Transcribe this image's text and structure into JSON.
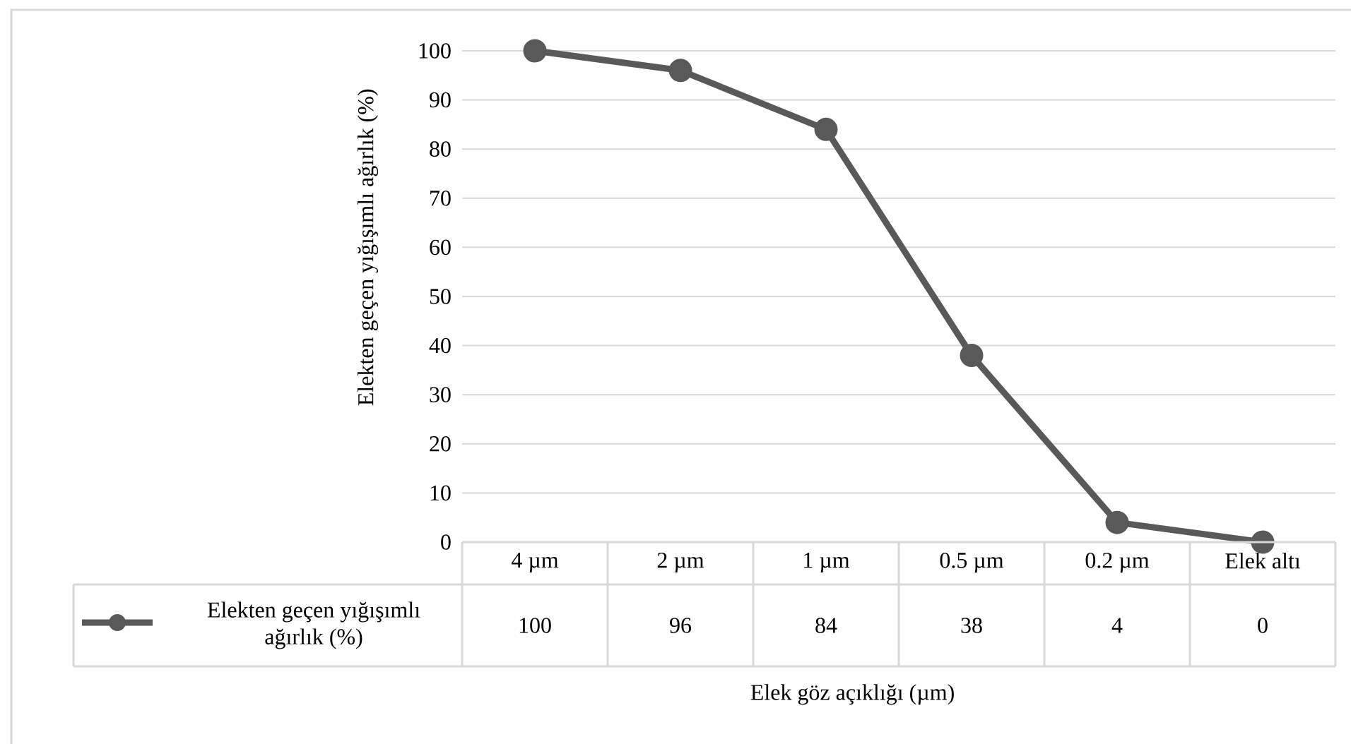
{
  "chart_data": {
    "type": "line",
    "xlabel": "Elek göz açıklığı (µm)",
    "ylabel": "Elekten geçen yığışımlı ağırlık (%)",
    "categories": [
      "4 µm",
      "2 µm",
      "1 µm",
      "0.5 µm",
      "0.2 µm",
      "Elek altı"
    ],
    "series": [
      {
        "name": "Elekten geçen yığışımlı ağırlık (%)",
        "color": "#595959",
        "values": [
          100,
          96,
          84,
          38,
          4,
          0
        ]
      }
    ],
    "ylim": [
      0,
      100
    ],
    "yticks": [
      0,
      10,
      20,
      30,
      40,
      50,
      60,
      70,
      80,
      90,
      100
    ],
    "grid": "y",
    "marker": "circle",
    "line_style": "solid",
    "legend": "bottom",
    "data_labels": true
  }
}
